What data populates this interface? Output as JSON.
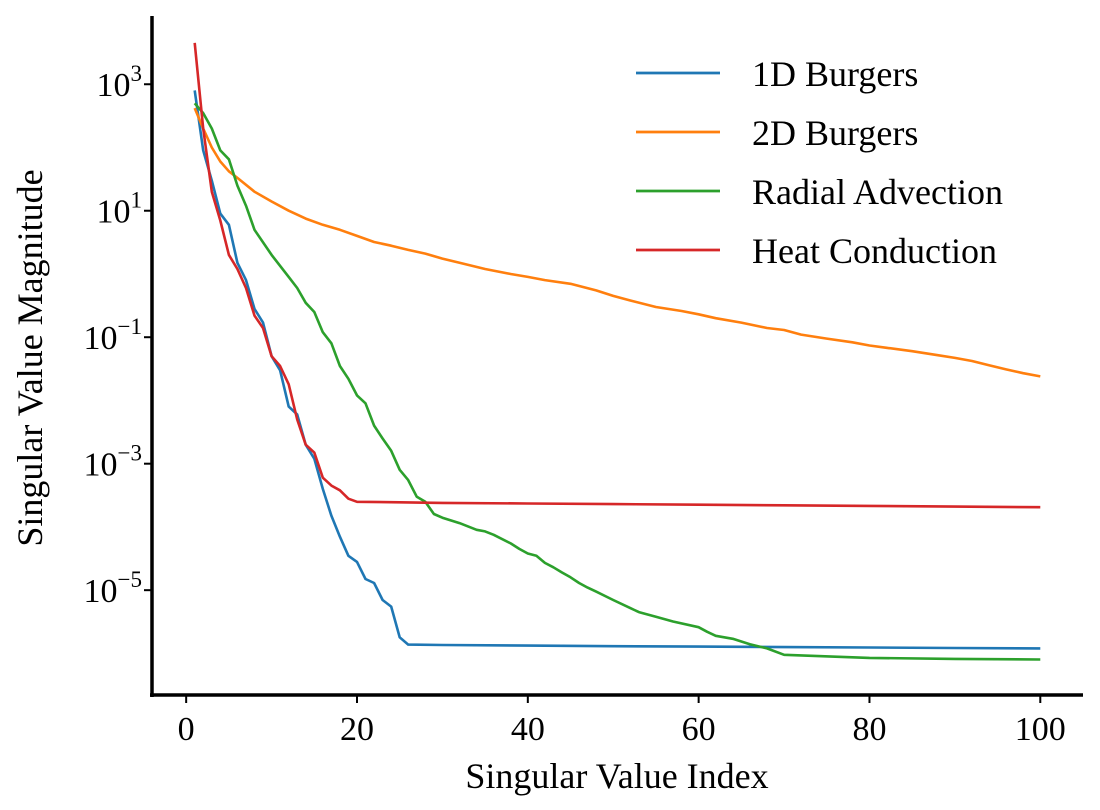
{
  "chart_data": {
    "type": "line",
    "xlabel": "Singular Value Index",
    "ylabel": "Singular Value Magnitude",
    "xscale": "linear",
    "yscale": "log",
    "xlim": [
      -4,
      105
    ],
    "ylim": [
      2.2e-07,
      12000
    ],
    "grid": false,
    "legend_position": "top-right",
    "xticks": [
      {
        "value": 0,
        "label": "0"
      },
      {
        "value": 20,
        "label": "20"
      },
      {
        "value": 40,
        "label": "40"
      },
      {
        "value": 60,
        "label": "60"
      },
      {
        "value": 80,
        "label": "80"
      },
      {
        "value": 100,
        "label": "100"
      }
    ],
    "yticks": [
      {
        "value": 1000,
        "base": "10",
        "exp": "3"
      },
      {
        "value": 10,
        "base": "10",
        "exp": "1"
      },
      {
        "value": 0.1,
        "base": "10",
        "exp": "−1"
      },
      {
        "value": 0.001,
        "base": "10",
        "exp": "−3"
      },
      {
        "value": 1e-05,
        "base": "10",
        "exp": "−5"
      }
    ],
    "series": [
      {
        "name": "1D Burgers",
        "color": "#1f77b4",
        "x": [
          1,
          2,
          3,
          4,
          5,
          6,
          7,
          8,
          9,
          10,
          11,
          12,
          13,
          14,
          15,
          16,
          17,
          18,
          19,
          20,
          21,
          22,
          23,
          24,
          25,
          26,
          30,
          40,
          50,
          60,
          70,
          80,
          90,
          100
        ],
        "y": [
          800,
          90,
          30,
          9,
          6,
          1.5,
          0.8,
          0.28,
          0.17,
          0.05,
          0.03,
          0.008,
          0.006,
          0.002,
          0.0012,
          0.0004,
          0.00015,
          7e-05,
          3.5e-05,
          2.8e-05,
          1.5e-05,
          1.3e-05,
          7e-06,
          5.5e-06,
          1.8e-06,
          1.38e-06,
          1.36e-06,
          1.33e-06,
          1.3e-06,
          1.28e-06,
          1.26e-06,
          1.24e-06,
          1.22e-06,
          1.2e-06
        ]
      },
      {
        "name": "2D Burgers",
        "color": "#ff7f0e",
        "x": [
          1,
          2,
          3,
          4,
          5,
          6,
          8,
          10,
          12,
          14,
          16,
          18,
          20,
          22,
          24,
          26,
          28,
          30,
          32,
          35,
          38,
          40,
          42,
          45,
          48,
          50,
          52,
          55,
          58,
          60,
          62,
          65,
          68,
          70,
          72,
          75,
          78,
          80,
          82,
          85,
          88,
          90,
          92,
          94,
          96,
          98,
          100
        ],
        "y": [
          420,
          200,
          100,
          60,
          42,
          33,
          20,
          14,
          10,
          7.5,
          6,
          5,
          4,
          3.2,
          2.8,
          2.4,
          2.1,
          1.75,
          1.5,
          1.2,
          1.0,
          0.9,
          0.8,
          0.7,
          0.55,
          0.45,
          0.38,
          0.3,
          0.26,
          0.23,
          0.2,
          0.17,
          0.14,
          0.13,
          0.11,
          0.095,
          0.083,
          0.074,
          0.068,
          0.06,
          0.052,
          0.047,
          0.042,
          0.036,
          0.031,
          0.027,
          0.024
        ]
      },
      {
        "name": "Radial Advection",
        "color": "#2ca02c",
        "x": [
          1,
          2,
          3,
          4,
          5,
          6,
          7,
          8,
          10,
          12,
          13,
          14,
          15,
          16,
          17,
          18,
          19,
          20,
          21,
          22,
          23,
          24,
          25,
          26,
          27,
          28,
          29,
          30,
          32,
          34,
          35,
          36,
          38,
          39,
          40,
          41,
          42,
          43,
          44,
          45,
          46,
          47,
          48,
          50,
          52,
          53,
          55,
          57,
          60,
          61,
          62,
          64,
          66,
          68,
          70,
          80,
          90,
          100
        ],
        "y": [
          500,
          350,
          200,
          90,
          65,
          25,
          12,
          5,
          2,
          0.9,
          0.6,
          0.35,
          0.25,
          0.12,
          0.08,
          0.035,
          0.022,
          0.012,
          0.009,
          0.004,
          0.0025,
          0.0016,
          0.0008,
          0.00055,
          0.0003,
          0.00025,
          0.00016,
          0.00014,
          0.000115,
          9e-05,
          8.5e-05,
          7.5e-05,
          5.5e-05,
          4.5e-05,
          3.8e-05,
          3.5e-05,
          2.7e-05,
          2.3e-05,
          1.9e-05,
          1.6e-05,
          1.3e-05,
          1.1e-05,
          9.5e-06,
          7e-06,
          5.2e-06,
          4.5e-06,
          3.8e-06,
          3.2e-06,
          2.6e-06,
          2.2e-06,
          1.9e-06,
          1.7e-06,
          1.4e-06,
          1.2e-06,
          9.5e-07,
          8.5e-07,
          8.2e-07,
          8e-07
        ]
      },
      {
        "name": "Heat Conduction",
        "color": "#d62728",
        "x": [
          1,
          2,
          3,
          4,
          5,
          6,
          7,
          8,
          9,
          10,
          11,
          12,
          13,
          14,
          15,
          16,
          17,
          18,
          19,
          20,
          25,
          30,
          40,
          50,
          60,
          70,
          80,
          90,
          100
        ],
        "y": [
          4500,
          200,
          20,
          7,
          2,
          1.2,
          0.6,
          0.22,
          0.14,
          0.05,
          0.035,
          0.018,
          0.005,
          0.002,
          0.0015,
          0.0006,
          0.00045,
          0.00038,
          0.00028,
          0.00025,
          0.000245,
          0.00024,
          0.000235,
          0.00023,
          0.000225,
          0.00022,
          0.000215,
          0.00021,
          0.000205
        ]
      }
    ]
  }
}
